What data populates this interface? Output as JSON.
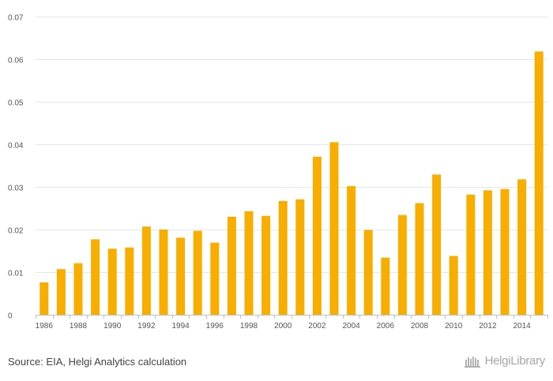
{
  "source": "Source: EIA, Helgi Analytics calculation",
  "brand": {
    "name": "HelgiLibrary"
  },
  "colors": {
    "bar": "#F7AE00",
    "grid": "#E6E6E6",
    "axis": "#C0C0C0",
    "text": "#555555"
  },
  "chart_data": {
    "type": "bar",
    "title": "",
    "xlabel": "",
    "ylabel": "",
    "ylim": [
      0,
      0.07
    ],
    "yticks": [
      "0",
      "0.01",
      "0.02",
      "0.03",
      "0.04",
      "0.05",
      "0.06",
      "0.07"
    ],
    "categories": [
      "1986",
      "1987",
      "1988",
      "1989",
      "1990",
      "1991",
      "1992",
      "1993",
      "1994",
      "1995",
      "1996",
      "1997",
      "1998",
      "1999",
      "2000",
      "2001",
      "2002",
      "2003",
      "2004",
      "2005",
      "2006",
      "2007",
      "2008",
      "2009",
      "2010",
      "2011",
      "2012",
      "2013",
      "2014",
      "2015"
    ],
    "xtick_labels": [
      "1986",
      "",
      "1988",
      "",
      "1990",
      "",
      "1992",
      "",
      "1994",
      "",
      "1996",
      "",
      "1998",
      "",
      "2000",
      "",
      "2002",
      "",
      "2004",
      "",
      "2006",
      "",
      "2008",
      "",
      "2010",
      "",
      "2012",
      "",
      "2014",
      ""
    ],
    "values": [
      0.0076,
      0.0107,
      0.0121,
      0.0177,
      0.0155,
      0.0158,
      0.0207,
      0.02,
      0.0181,
      0.0197,
      0.0169,
      0.023,
      0.0243,
      0.0232,
      0.0267,
      0.0271,
      0.0371,
      0.0405,
      0.0302,
      0.0199,
      0.0134,
      0.0234,
      0.0262,
      0.0329,
      0.0138,
      0.0282,
      0.0292,
      0.0295,
      0.0318,
      0.0618
    ]
  }
}
